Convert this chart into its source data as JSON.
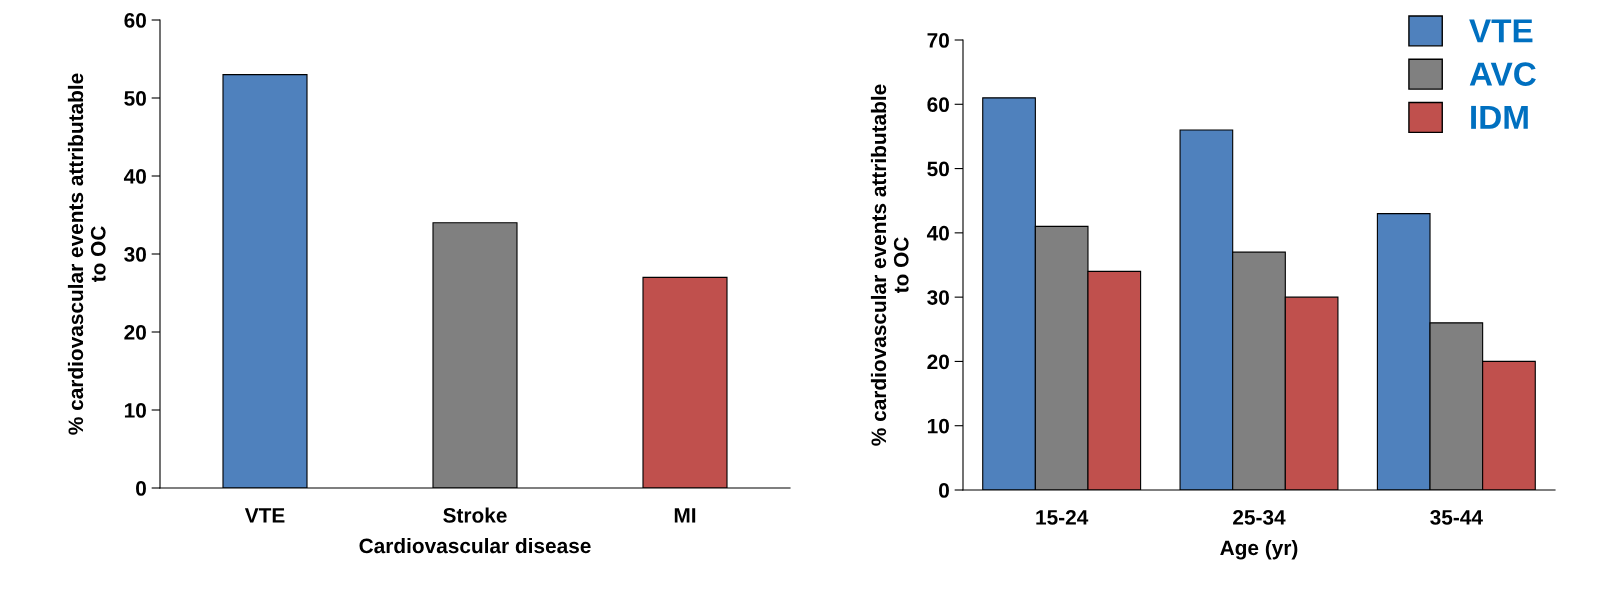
{
  "chart_data": [
    {
      "type": "bar",
      "xlabel": "Cardiovascular disease",
      "ylabel": "% cardiovascular events attributable\nto OC",
      "categories": [
        "VTE",
        "Stroke",
        "MI"
      ],
      "values": [
        53,
        34,
        27
      ],
      "colors": [
        "#4f81bd",
        "#808080",
        "#c0504d"
      ],
      "ylim": [
        0,
        60
      ],
      "yticks": [
        0,
        10,
        20,
        30,
        40,
        50,
        60
      ],
      "grid": false,
      "legend": false
    },
    {
      "type": "bar",
      "xlabel": "Age (yr)",
      "ylabel": "% cardiovascular events attributable\nto OC",
      "categories": [
        "15-24",
        "25-34",
        "35-44"
      ],
      "series": [
        {
          "name": "VTE",
          "color": "#4f81bd",
          "values": [
            61,
            56,
            43
          ]
        },
        {
          "name": "AVC",
          "color": "#808080",
          "values": [
            41,
            37,
            26
          ]
        },
        {
          "name": "IDM",
          "color": "#c0504d",
          "values": [
            34,
            30,
            20
          ]
        }
      ],
      "ylim": [
        0,
        70
      ],
      "yticks": [
        0,
        10,
        20,
        30,
        40,
        50,
        60,
        70
      ],
      "grid": false,
      "legend": "top right"
    }
  ]
}
